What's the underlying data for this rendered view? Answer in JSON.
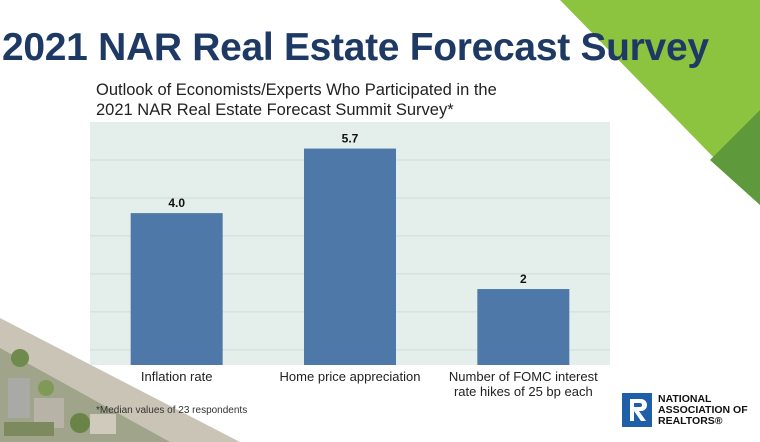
{
  "slide": {
    "title": "2021 NAR Real Estate Forecast Survey",
    "subtitle_line1": "Outlook of Economists/Experts Who Participated in the",
    "subtitle_line2": "2021 NAR Real Estate Forecast Summit Survey*",
    "footnote": "*Median values of 23 respondents"
  },
  "logo": {
    "line1": "NATIONAL",
    "line2": "ASSOCIATION OF",
    "line3": "REALTORS®",
    "colors": {
      "mark": "#1f5fa8"
    }
  },
  "colors": {
    "title": "#1e3a64",
    "bar": "#4e78a8",
    "plot_bg": "#e4efec",
    "corner_light": "#8dc43f",
    "corner_dark": "#5e9a3c"
  },
  "chart_data": {
    "type": "bar",
    "categories": [
      [
        "Inflation rate"
      ],
      [
        "Home price appreciation"
      ],
      [
        "Number of FOMC interest",
        "rate hikes of 25 bp each"
      ]
    ],
    "values": [
      4.0,
      5.7,
      2
    ],
    "value_labels": [
      "4.0",
      "5.7",
      "2"
    ],
    "ylim": [
      0,
      6.4
    ],
    "grid": true
  }
}
